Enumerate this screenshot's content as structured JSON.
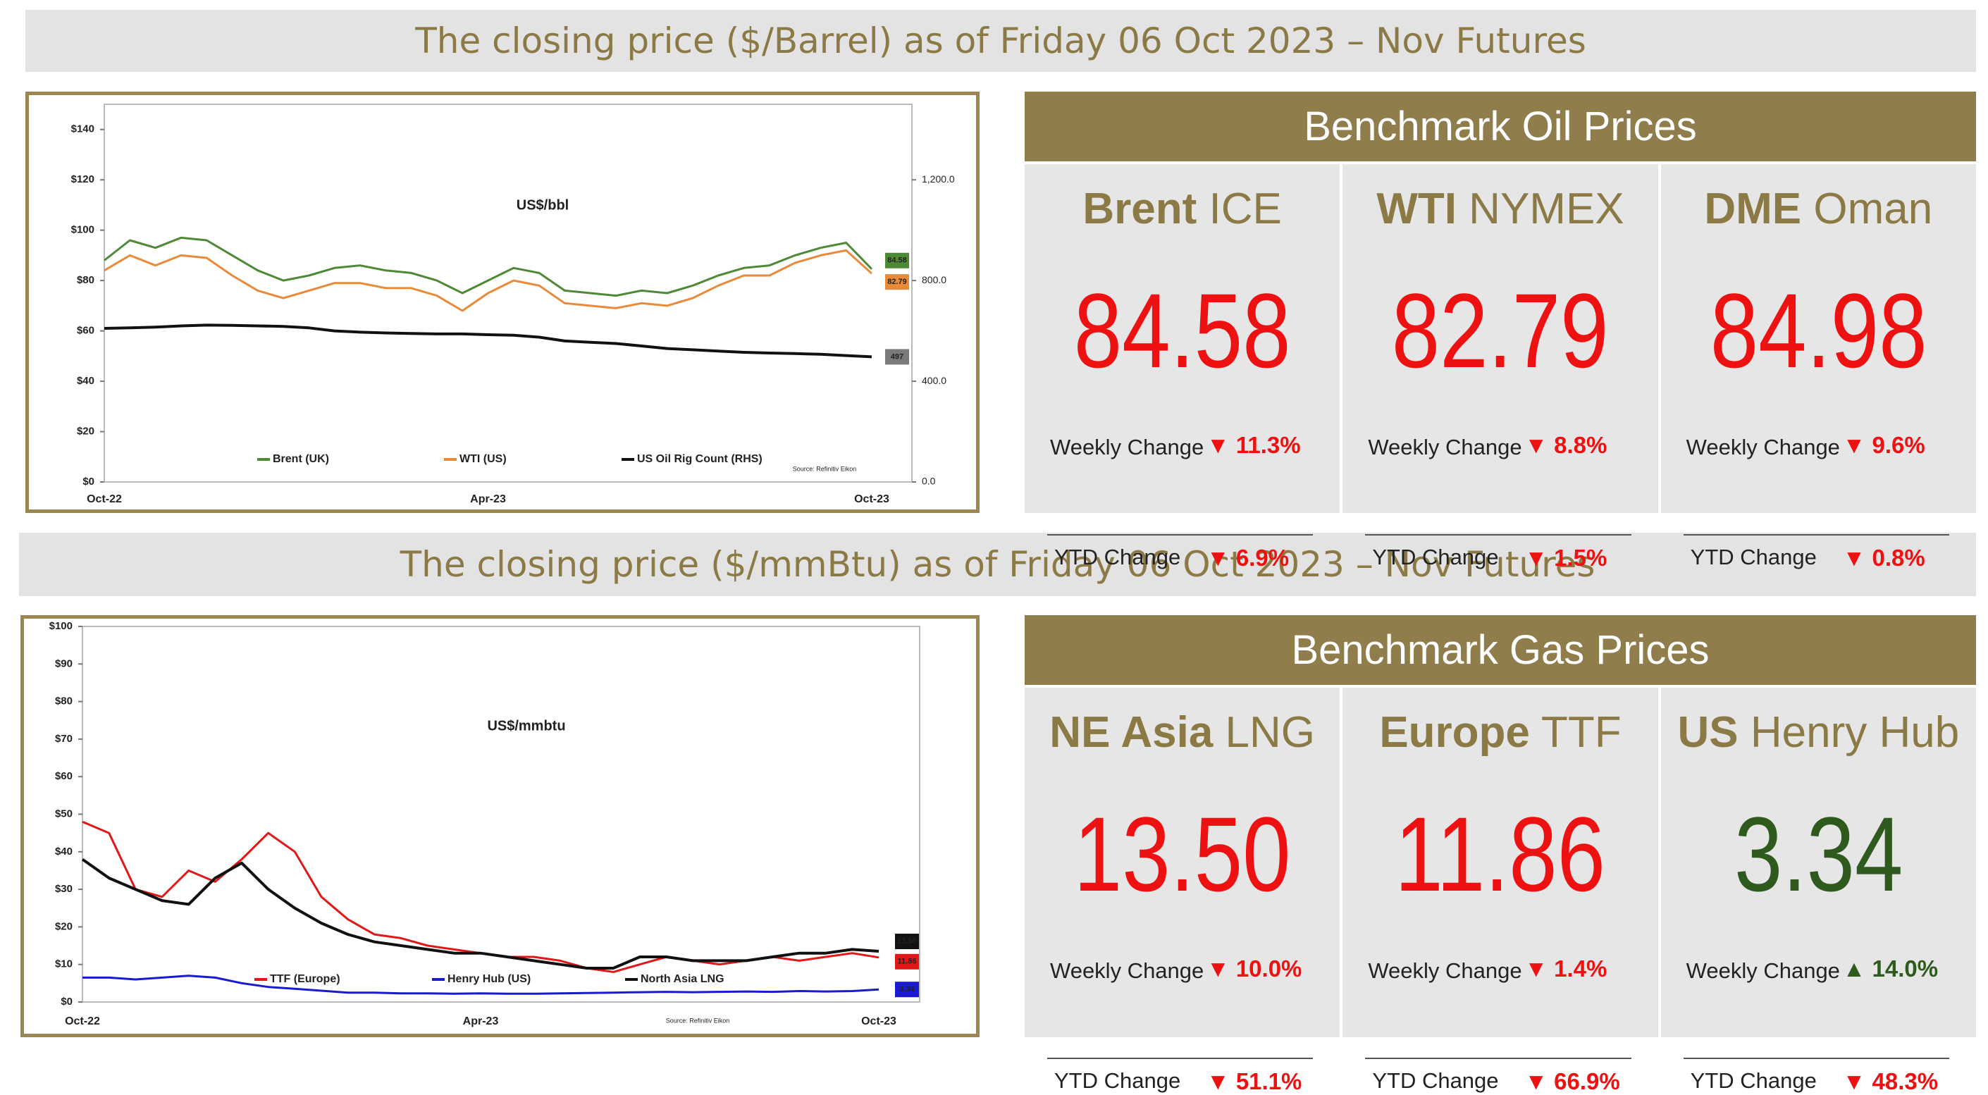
{
  "banners": [
    "The closing price ($/Barrel) as of Friday 06 Oct 2023 – Nov Futures",
    "The closing price ($/mmBtu) as of Friday 06 Oct 2023 – Nov Futures"
  ],
  "chart_data": [
    {
      "type": "line",
      "title": "US$/bbl",
      "source": "Source: Refinitiv Eikon",
      "categories": [
        "Oct-22",
        null,
        null,
        null,
        null,
        null,
        null,
        null,
        null,
        null,
        null,
        null,
        null,
        null,
        null,
        "Apr-23",
        null,
        null,
        null,
        null,
        null,
        null,
        null,
        null,
        null,
        null,
        null,
        null,
        null,
        null,
        "Oct-23"
      ],
      "series": [
        {
          "name": "Brent (UK)",
          "color": "#4e8a36",
          "values": [
            88,
            96,
            93,
            97,
            96,
            90,
            84,
            80,
            82,
            85,
            86,
            84,
            83,
            80,
            75,
            80,
            85,
            83,
            76,
            75,
            74,
            76,
            75,
            78,
            82,
            85,
            86,
            90,
            93,
            95,
            84.58
          ]
        },
        {
          "name": "WTI (US)",
          "color": "#e88a3a",
          "values": [
            84,
            90,
            86,
            90,
            89,
            82,
            76,
            73,
            76,
            79,
            79,
            77,
            77,
            74,
            68,
            75,
            80,
            78,
            71,
            70,
            69,
            71,
            70,
            73,
            78,
            82,
            82,
            87,
            90,
            92,
            82.79
          ]
        },
        {
          "name": "US Oil Rig Count (RHS)",
          "color": "#111111",
          "tag_color": "#7a7a7a",
          "axis": "y2",
          "values": [
            610,
            612,
            615,
            620,
            623,
            622,
            620,
            618,
            612,
            600,
            595,
            592,
            590,
            588,
            588,
            585,
            583,
            575,
            560,
            555,
            550,
            540,
            530,
            525,
            520,
            515,
            512,
            510,
            507,
            502,
            497
          ]
        }
      ],
      "ylim": [
        0,
        150
      ],
      "yticks": [
        {
          "value": 0,
          "label": "$0"
        },
        {
          "value": 20,
          "label": "$20"
        },
        {
          "value": 40,
          "label": "$40"
        },
        {
          "value": 60,
          "label": "$60"
        },
        {
          "value": 80,
          "label": "$80"
        },
        {
          "value": 100,
          "label": "$100"
        },
        {
          "value": 120,
          "label": "$120"
        },
        {
          "value": 140,
          "label": "$140"
        }
      ],
      "y2lim": [
        0,
        1500
      ],
      "y2ticks": [
        {
          "value": 0,
          "label": "0.0"
        },
        {
          "value": 400,
          "label": "400.0"
        },
        {
          "value": 800,
          "label": "800.0"
        },
        {
          "value": 1200,
          "label": "1,200.0"
        }
      ]
    },
    {
      "type": "line",
      "title": "US$/mmbtu",
      "source": "Source: Refinitiv Eikon",
      "categories": [
        "Oct-22",
        null,
        null,
        null,
        null,
        null,
        null,
        null,
        null,
        null,
        null,
        null,
        null,
        null,
        null,
        "Apr-23",
        null,
        null,
        null,
        null,
        null,
        null,
        null,
        null,
        null,
        null,
        null,
        null,
        null,
        null,
        "Oct-23"
      ],
      "series": [
        {
          "name": "TTF (Europe)",
          "color": "#e01818",
          "values": [
            48,
            45,
            30,
            28,
            35,
            32,
            38,
            45,
            40,
            28,
            22,
            18,
            17,
            15,
            14,
            13,
            12,
            12,
            11,
            9,
            8,
            10,
            12,
            11,
            10,
            11,
            12,
            11,
            12,
            13,
            11.86
          ],
          "value_labels": [
            null,
            null,
            null,
            null,
            null,
            null,
            null,
            null,
            null,
            null,
            null,
            null,
            null,
            null,
            null,
            null,
            null,
            null,
            null,
            null,
            null,
            null,
            null,
            null,
            null,
            null,
            null,
            null,
            null,
            null,
            "11.86"
          ]
        },
        {
          "name": "Henry Hub (US)",
          "color": "#1a1ad0",
          "values": [
            6.5,
            6.5,
            6,
            6.5,
            7,
            6.5,
            5,
            4,
            3.5,
            3,
            2.5,
            2.5,
            2.3,
            2.3,
            2.2,
            2.3,
            2.2,
            2.2,
            2.3,
            2.4,
            2.5,
            2.6,
            2.7,
            2.6,
            2.7,
            2.8,
            2.7,
            2.9,
            2.8,
            2.9,
            3.34
          ]
        },
        {
          "name": "North Asia LNG",
          "color": "#111111",
          "values": [
            38,
            33,
            30,
            27,
            26,
            33,
            37,
            30,
            25,
            21,
            18,
            16,
            15,
            14,
            13,
            13,
            12,
            11,
            10,
            9,
            9,
            12,
            12,
            11,
            11,
            11,
            12,
            13,
            13,
            14,
            13.5
          ],
          "value_labels": [
            null,
            null,
            null,
            null,
            null,
            null,
            null,
            null,
            null,
            null,
            null,
            null,
            null,
            null,
            null,
            null,
            null,
            null,
            null,
            null,
            null,
            null,
            null,
            null,
            null,
            null,
            null,
            null,
            null,
            null,
            "13.50"
          ]
        }
      ],
      "ylim": [
        0,
        100
      ],
      "yticks": [
        {
          "value": 0,
          "label": "$0"
        },
        {
          "value": 10,
          "label": "$10"
        },
        {
          "value": 20,
          "label": "$20"
        },
        {
          "value": 30,
          "label": "$30"
        },
        {
          "value": 40,
          "label": "$40"
        },
        {
          "value": 50,
          "label": "$50"
        },
        {
          "value": 60,
          "label": "$60"
        },
        {
          "value": 70,
          "label": "$70"
        },
        {
          "value": 80,
          "label": "$80"
        },
        {
          "value": 90,
          "label": "$90"
        },
        {
          "value": 100,
          "label": "$100"
        }
      ]
    }
  ],
  "panels": [
    {
      "title": "Benchmark Oil Prices",
      "cards": [
        {
          "name_bold": "Brent",
          "name_light": "ICE",
          "price": "84.58",
          "price_color": "#ee1111",
          "weekly_label": "Weekly Change",
          "weekly_change": "▼ 11.3%",
          "weekly_color": "#ee1111",
          "ytd_label": "YTD Change",
          "ytd_change": "▼ 6.9%",
          "ytd_color": "#ee1111"
        },
        {
          "name_bold": "WTI",
          "name_light": "NYMEX",
          "price": "82.79",
          "price_color": "#ee1111",
          "weekly_label": "Weekly Change",
          "weekly_change": "▼ 8.8%",
          "weekly_color": "#ee1111",
          "ytd_label": "YTD Change",
          "ytd_change": "▼ 1.5%",
          "ytd_color": "#ee1111"
        },
        {
          "name_bold": "DME",
          "name_light": "Oman",
          "price": "84.98",
          "price_color": "#ee1111",
          "weekly_label": "Weekly Change",
          "weekly_change": "▼ 9.6%",
          "weekly_color": "#ee1111",
          "ytd_label": "YTD Change",
          "ytd_change": "▼ 0.8%",
          "ytd_color": "#ee1111"
        }
      ]
    },
    {
      "title": "Benchmark Gas Prices",
      "cards": [
        {
          "name_bold": "NE Asia",
          "name_light": "LNG",
          "price": "13.50",
          "price_color": "#ee1111",
          "weekly_label": "Weekly Change",
          "weekly_change": "▼ 10.0%",
          "weekly_color": "#ee1111",
          "ytd_label": "YTD Change",
          "ytd_change": "▼ 51.1%",
          "ytd_color": "#ee1111"
        },
        {
          "name_bold": "Europe",
          "name_light": "TTF",
          "price": "11.86",
          "price_color": "#ee1111",
          "weekly_label": "Weekly Change",
          "weekly_change": "▼ 1.4%",
          "weekly_color": "#ee1111",
          "ytd_label": "YTD Change",
          "ytd_change": "▼ 66.9%",
          "ytd_color": "#ee1111"
        },
        {
          "name_bold": "US",
          "name_light": "Henry Hub",
          "price": "3.34",
          "price_color": "#2f5a1e",
          "weekly_label": "Weekly Change",
          "weekly_change": "▲ 14.0%",
          "weekly_color": "#2f5a1e",
          "ytd_label": "YTD Change",
          "ytd_change": "▼ 48.3%",
          "ytd_color": "#ee1111"
        }
      ]
    }
  ]
}
